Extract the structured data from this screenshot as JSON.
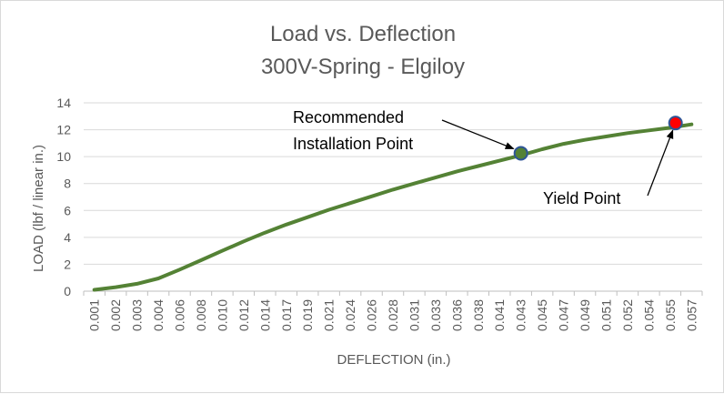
{
  "chart_data": {
    "type": "line",
    "title": "Load vs. Deflection",
    "subtitle": "300V-Spring - Elgiloy",
    "xlabel": "DEFLECTION (in.)",
    "ylabel": "LOAD (lbf / linear in.)",
    "ylim": [
      0,
      14
    ],
    "yticks": [
      "0",
      "2",
      "4",
      "6",
      "8",
      "10",
      "12",
      "14"
    ],
    "xticks": [
      "0.001",
      "0.002",
      "0.003",
      "0.004",
      "0.006",
      "0.008",
      "0.010",
      "0.012",
      "0.014",
      "0.017",
      "0.019",
      "0.021",
      "0.024",
      "0.026",
      "0.028",
      "0.031",
      "0.033",
      "0.036",
      "0.038",
      "0.041",
      "0.043",
      "0.045",
      "0.047",
      "0.049",
      "0.051",
      "0.052",
      "0.054",
      "0.055",
      "0.057"
    ],
    "grid": true,
    "legend": "none",
    "series": [
      {
        "color": "#548235",
        "x": [
          0.001,
          0.002,
          0.003,
          0.004,
          0.006,
          0.008,
          0.01,
          0.012,
          0.014,
          0.017,
          0.019,
          0.021,
          0.024,
          0.026,
          0.028,
          0.031,
          0.033,
          0.036,
          0.038,
          0.041,
          0.043,
          0.045,
          0.047,
          0.049,
          0.051,
          0.052,
          0.054,
          0.055,
          0.057
        ],
        "values": [
          0.1,
          0.3,
          0.55,
          0.95,
          1.6,
          2.3,
          3.0,
          3.7,
          4.35,
          4.95,
          5.5,
          6.05,
          6.55,
          7.05,
          7.55,
          8.0,
          8.45,
          8.9,
          9.3,
          9.7,
          10.1,
          10.55,
          10.95,
          11.25,
          11.5,
          11.75,
          11.95,
          12.15,
          12.4
        ]
      }
    ],
    "annotations": [
      {
        "lines": [
          "Recommended",
          "Installation Point"
        ],
        "x": 0.043,
        "y": 10.25,
        "marker_color": "#548235",
        "marker_edge": "#2e5597"
      },
      {
        "lines": [
          "Yield Point"
        ],
        "x": 0.0555,
        "y": 12.5,
        "marker_color": "#ff0000",
        "marker_edge": "#2e5597"
      }
    ]
  }
}
